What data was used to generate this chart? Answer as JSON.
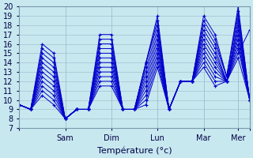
{
  "xlabel": "Température (°c)",
  "ylim": [
    7,
    20
  ],
  "xlim": [
    0,
    120
  ],
  "background_color": "#c8e8f0",
  "grid_color": "#a0c0d0",
  "line_color": "#0000cc",
  "xtick_positions": [
    0,
    24,
    48,
    72,
    96,
    114,
    120
  ],
  "xtick_labels": [
    "",
    "Sam",
    "Dim",
    "Lun",
    "Mar",
    "Mer",
    ""
  ],
  "ytick_positions": [
    7,
    8,
    9,
    10,
    11,
    12,
    13,
    14,
    15,
    16,
    17,
    18,
    19,
    20
  ],
  "forecasts": [
    {
      "x": [
        0,
        6,
        12,
        18,
        24,
        30,
        36,
        42,
        48,
        54,
        60,
        66,
        72,
        78,
        84,
        90,
        96,
        102,
        108,
        114,
        120
      ],
      "y": [
        9.5,
        9,
        16,
        15,
        8,
        9,
        9,
        17,
        17,
        9,
        9,
        14,
        19,
        9,
        12,
        12,
        19,
        17,
        12.5,
        20,
        10
      ]
    },
    {
      "x": [
        0,
        6,
        12,
        18,
        24,
        30,
        36,
        42,
        48,
        54,
        60,
        66,
        72,
        78,
        84,
        90,
        96,
        102,
        108,
        114,
        120
      ],
      "y": [
        9.5,
        9,
        15.5,
        14.5,
        8,
        9,
        9,
        16.5,
        16.5,
        9,
        9,
        14,
        18.5,
        9,
        12,
        12,
        18.5,
        16.5,
        12.5,
        19.5,
        10
      ]
    },
    {
      "x": [
        0,
        6,
        12,
        18,
        24,
        30,
        36,
        42,
        48,
        54,
        60,
        66,
        72,
        78,
        84,
        90,
        96,
        102,
        108,
        114,
        120
      ],
      "y": [
        9.5,
        9,
        15,
        14,
        8,
        9,
        9,
        16,
        16,
        9,
        9,
        14,
        18,
        9,
        12,
        12,
        18,
        16,
        12.5,
        19,
        10
      ]
    },
    {
      "x": [
        0,
        6,
        12,
        18,
        24,
        30,
        36,
        42,
        48,
        54,
        60,
        66,
        72,
        78,
        84,
        90,
        96,
        102,
        108,
        114,
        120
      ],
      "y": [
        9.5,
        9,
        14.5,
        13.5,
        8,
        9,
        9,
        15.5,
        15.5,
        9,
        9,
        13.5,
        17.5,
        9,
        12,
        12,
        17.5,
        15.5,
        12,
        18.5,
        10
      ]
    },
    {
      "x": [
        0,
        6,
        12,
        18,
        24,
        30,
        36,
        42,
        48,
        54,
        60,
        66,
        72,
        78,
        84,
        90,
        96,
        102,
        108,
        114,
        120
      ],
      "y": [
        9.5,
        9,
        14,
        13,
        8,
        9,
        9,
        15,
        15,
        9,
        9,
        13,
        17,
        9,
        12,
        12,
        17,
        15,
        12,
        18,
        10
      ]
    },
    {
      "x": [
        0,
        6,
        12,
        18,
        24,
        30,
        36,
        42,
        48,
        54,
        60,
        66,
        72,
        78,
        84,
        90,
        96,
        102,
        108,
        114,
        120
      ],
      "y": [
        9.5,
        9,
        13.5,
        12.5,
        8,
        9,
        9,
        14.5,
        14.5,
        9,
        9,
        12.5,
        16.5,
        9,
        12,
        12,
        16.5,
        14.5,
        12,
        17.5,
        10
      ]
    },
    {
      "x": [
        0,
        6,
        12,
        18,
        24,
        30,
        36,
        42,
        48,
        54,
        60,
        66,
        72,
        78,
        84,
        90,
        96,
        102,
        108,
        114,
        120
      ],
      "y": [
        9.5,
        9,
        13,
        12,
        8,
        9,
        9,
        14,
        14,
        9,
        9,
        12,
        16,
        9,
        12,
        12,
        16,
        14,
        12,
        17,
        10
      ]
    },
    {
      "x": [
        0,
        6,
        12,
        18,
        24,
        30,
        36,
        42,
        48,
        54,
        60,
        66,
        72,
        78,
        84,
        90,
        96,
        102,
        108,
        114,
        120
      ],
      "y": [
        9.5,
        9,
        12.5,
        11.5,
        8,
        9,
        9,
        13.5,
        13.5,
        9,
        9,
        11.5,
        15.5,
        9,
        12,
        12,
        15.5,
        13.5,
        12,
        16.5,
        10
      ]
    },
    {
      "x": [
        0,
        6,
        12,
        18,
        24,
        30,
        36,
        42,
        48,
        54,
        60,
        66,
        72,
        78,
        84,
        90,
        96,
        102,
        108,
        114,
        120
      ],
      "y": [
        9.5,
        9,
        12,
        11,
        8,
        9,
        9,
        13,
        13,
        9,
        9,
        11,
        15,
        9,
        12,
        12,
        15,
        13,
        12,
        16,
        10
      ]
    },
    {
      "x": [
        0,
        6,
        12,
        18,
        24,
        30,
        36,
        42,
        48,
        54,
        60,
        66,
        72,
        78,
        84,
        90,
        96,
        102,
        108,
        114,
        120
      ],
      "y": [
        9.5,
        9,
        11.5,
        10.5,
        8,
        9,
        9,
        12.5,
        12.5,
        9,
        9,
        10.5,
        14.5,
        9,
        12,
        12,
        14.5,
        12.5,
        12,
        15.5,
        10
      ]
    },
    {
      "x": [
        0,
        6,
        12,
        18,
        24,
        30,
        36,
        42,
        48,
        54,
        60,
        66,
        72,
        78,
        84,
        90,
        96,
        102,
        108,
        114,
        120
      ],
      "y": [
        9.5,
        9,
        11,
        10,
        8,
        9,
        9,
        12,
        12,
        9,
        9,
        10,
        14,
        9,
        12,
        12,
        14,
        12,
        12,
        15,
        17.5
      ]
    },
    {
      "x": [
        0,
        6,
        12,
        18,
        24,
        30,
        36,
        42,
        48,
        54,
        60,
        66,
        72,
        78,
        84,
        90,
        96,
        102,
        108,
        114,
        120
      ],
      "y": [
        9.5,
        9,
        10.5,
        9.5,
        8,
        9,
        9,
        11.5,
        11.5,
        9,
        9,
        9.5,
        13.5,
        9,
        12,
        12,
        13.5,
        11.5,
        12,
        14.5,
        10
      ]
    }
  ]
}
